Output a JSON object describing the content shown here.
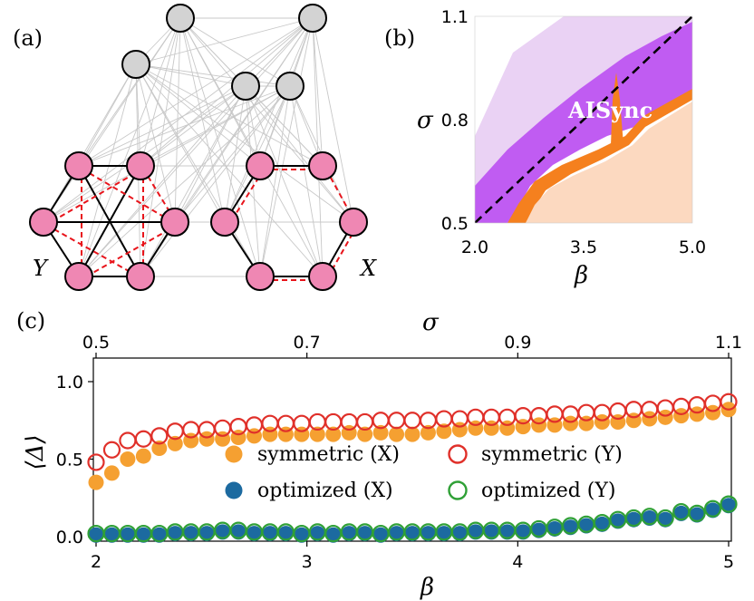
{
  "panels": {
    "a": "(a)",
    "b": "(b)",
    "c": "(c)"
  },
  "network": {
    "label_y": "Y",
    "label_x": "X",
    "colors": {
      "driver": "#d3d3d3",
      "node": "#ef87b3",
      "edge_grey": "#c8c8c8",
      "edge_black": "#000000",
      "edge_red": "#e8141b"
    }
  },
  "heatmap": {
    "title": "",
    "xlabel": "β",
    "ylabel": "σ",
    "xticks": [
      "2.0",
      "3.5",
      "5.0"
    ],
    "yticks": [
      "0.5",
      "0.8",
      "1.1"
    ],
    "xlim": [
      2.0,
      5.0
    ],
    "ylim": [
      0.5,
      1.1
    ],
    "annotation": "AISync",
    "diagonal": "dashed",
    "colors": {
      "light_purple": "#ead2f4",
      "purple": "#c05cf2",
      "orange": "#f5801e",
      "peach": "#fcd9c0"
    }
  },
  "chart_data": {
    "type": "scatter",
    "title": "",
    "xlabel": "β",
    "ylabel": "⟨Δ⟩",
    "top_xlabel": "σ",
    "xlim": [
      2,
      5
    ],
    "ylim": [
      0,
      1
    ],
    "top_xlim": [
      0.5,
      1.1
    ],
    "xticks": [
      "2",
      "3",
      "4",
      "5"
    ],
    "yticks": [
      "0.0",
      "0.5",
      "1.0"
    ],
    "top_xticks": [
      "0.5",
      "0.7",
      "0.9",
      "1.1"
    ],
    "legend_position": "center",
    "x": [
      2.0,
      2.075,
      2.15,
      2.225,
      2.3,
      2.375,
      2.45,
      2.525,
      2.6,
      2.675,
      2.75,
      2.825,
      2.9,
      2.975,
      3.05,
      3.125,
      3.2,
      3.275,
      3.35,
      3.425,
      3.5,
      3.575,
      3.65,
      3.725,
      3.8,
      3.875,
      3.95,
      4.025,
      4.1,
      4.175,
      4.25,
      4.325,
      4.4,
      4.475,
      4.55,
      4.625,
      4.7,
      4.775,
      4.85,
      4.925,
      5.0
    ],
    "series": [
      {
        "name": "symmetric (X)",
        "style": "filled",
        "color": "#f5a031",
        "values": [
          0.35,
          0.41,
          0.5,
          0.52,
          0.57,
          0.6,
          0.62,
          0.63,
          0.63,
          0.64,
          0.65,
          0.66,
          0.66,
          0.66,
          0.66,
          0.66,
          0.67,
          0.66,
          0.67,
          0.66,
          0.66,
          0.67,
          0.68,
          0.69,
          0.7,
          0.7,
          0.7,
          0.71,
          0.72,
          0.72,
          0.73,
          0.73,
          0.74,
          0.74,
          0.75,
          0.76,
          0.77,
          0.78,
          0.79,
          0.8,
          0.82
        ]
      },
      {
        "name": "symmetric (Y)",
        "style": "hollow",
        "color": "#e0302a",
        "values": [
          0.48,
          0.56,
          0.62,
          0.63,
          0.65,
          0.68,
          0.69,
          0.69,
          0.7,
          0.71,
          0.72,
          0.73,
          0.73,
          0.73,
          0.74,
          0.74,
          0.74,
          0.74,
          0.75,
          0.75,
          0.75,
          0.75,
          0.76,
          0.76,
          0.77,
          0.77,
          0.77,
          0.78,
          0.78,
          0.79,
          0.79,
          0.8,
          0.8,
          0.81,
          0.82,
          0.82,
          0.83,
          0.84,
          0.85,
          0.86,
          0.87
        ]
      },
      {
        "name": "optimized (X)",
        "style": "filled",
        "color": "#1c6aa0",
        "values": [
          0.01,
          0.01,
          0.01,
          0.01,
          0.01,
          0.02,
          0.02,
          0.02,
          0.03,
          0.03,
          0.02,
          0.02,
          0.02,
          0.01,
          0.02,
          0.01,
          0.02,
          0.02,
          0.01,
          0.02,
          0.02,
          0.02,
          0.02,
          0.02,
          0.03,
          0.03,
          0.03,
          0.03,
          0.04,
          0.05,
          0.06,
          0.07,
          0.08,
          0.1,
          0.11,
          0.12,
          0.11,
          0.15,
          0.14,
          0.17,
          0.2
        ]
      },
      {
        "name": "optimized (Y)",
        "style": "hollow",
        "color": "#2fa036",
        "values": [
          0.02,
          0.02,
          0.02,
          0.02,
          0.02,
          0.03,
          0.03,
          0.03,
          0.04,
          0.04,
          0.03,
          0.03,
          0.03,
          0.02,
          0.03,
          0.02,
          0.03,
          0.03,
          0.02,
          0.03,
          0.03,
          0.03,
          0.03,
          0.03,
          0.04,
          0.04,
          0.04,
          0.04,
          0.05,
          0.06,
          0.07,
          0.08,
          0.09,
          0.11,
          0.12,
          0.13,
          0.12,
          0.16,
          0.15,
          0.18,
          0.21
        ]
      }
    ]
  }
}
